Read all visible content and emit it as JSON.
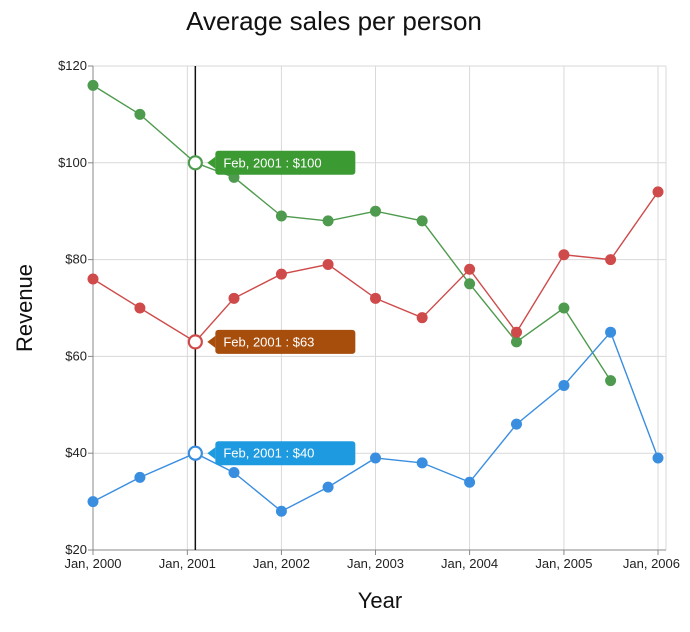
{
  "chart_data": {
    "type": "line",
    "title": "Average sales per person",
    "xlabel": "Year",
    "ylabel": "Revenue",
    "ylim": [
      20,
      120
    ],
    "y_ticks": [
      "$20",
      "$40",
      "$60",
      "$80",
      "$100",
      "$120"
    ],
    "x_ticks": [
      "Jan, 2000",
      "Jan, 2001",
      "Jan, 2002",
      "Jan, 2003",
      "Jan, 2004",
      "Jan, 2005",
      "Jan, 2006"
    ],
    "grid": true,
    "x": [
      "2000-01",
      "2000-07",
      "2001-02",
      "2001-07",
      "2002-01",
      "2002-07",
      "2003-01",
      "2003-07",
      "2004-01",
      "2004-07",
      "2005-01",
      "2005-07",
      "2006-01"
    ],
    "series": [
      {
        "color": "#4e9a4e",
        "values": [
          116,
          110,
          100,
          97,
          89,
          88,
          90,
          88,
          75,
          63,
          70,
          55,
          null
        ]
      },
      {
        "color": "#cf4a4a",
        "values": [
          76,
          70,
          63,
          72,
          77,
          79,
          72,
          68,
          78,
          65,
          81,
          80,
          94
        ]
      },
      {
        "color": "#3a8ee0",
        "values": [
          30,
          35,
          40,
          36,
          28,
          33,
          39,
          38,
          34,
          46,
          54,
          65,
          39
        ]
      }
    ],
    "crosshair": {
      "x": "2001-02"
    },
    "tooltips": [
      {
        "text": "Feb, 2001 : $100",
        "value": 100,
        "color": "#3b9a32",
        "series_color": "#4e9a4e"
      },
      {
        "text": "Feb, 2001 : $63",
        "value": 63,
        "color": "#a84e0c",
        "series_color": "#cf4a4a"
      },
      {
        "text": "Feb, 2001 : $40",
        "value": 40,
        "color": "#1e9be0",
        "series_color": "#3a8ee0"
      }
    ]
  }
}
